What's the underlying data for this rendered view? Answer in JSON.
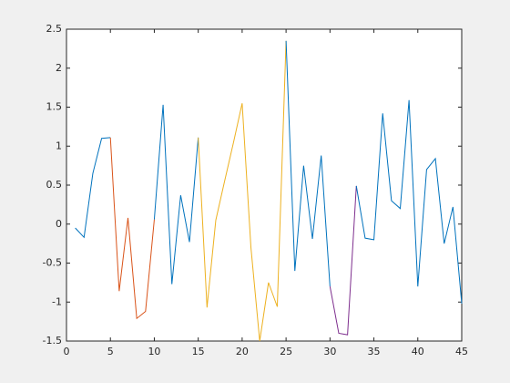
{
  "chart_data": {
    "type": "line",
    "series": [
      {
        "color": "#0072bd",
        "x": [
          1,
          2,
          3,
          4,
          5
        ],
        "values": [
          -0.05,
          -0.17,
          0.65,
          1.1,
          1.11
        ]
      },
      {
        "color": "#d95319",
        "x": [
          5,
          6,
          7,
          8,
          9,
          10
        ],
        "values": [
          1.11,
          -0.86,
          0.08,
          -1.21,
          -1.12,
          0.06
        ]
      },
      {
        "color": "#0072bd",
        "x": [
          10,
          11,
          12,
          13,
          14,
          15
        ],
        "values": [
          0.06,
          1.53,
          -0.77,
          0.37,
          -0.23,
          1.11
        ]
      },
      {
        "color": "#edb120",
        "x": [
          15,
          16,
          17,
          18,
          19,
          20,
          21,
          22,
          23,
          24,
          25
        ],
        "values": [
          1.11,
          -1.07,
          0.05,
          0.55,
          1.04,
          1.55,
          -0.3,
          -1.5,
          -0.75,
          -1.06,
          2.35
        ]
      },
      {
        "color": "#0072bd",
        "x": [
          25,
          26,
          27,
          28,
          29,
          30
        ],
        "values": [
          2.35,
          -0.6,
          0.75,
          -0.19,
          0.88,
          -0.8
        ]
      },
      {
        "color": "#7e2f8e",
        "x": [
          30,
          31,
          32,
          33
        ],
        "values": [
          -0.8,
          -1.4,
          -1.42,
          0.49
        ]
      },
      {
        "color": "#0072bd",
        "x": [
          33,
          34,
          35,
          36,
          37,
          38,
          39,
          40,
          41,
          42,
          43,
          44,
          45
        ],
        "values": [
          0.49,
          -0.18,
          -0.2,
          1.42,
          0.3,
          0.2,
          1.59,
          -0.8,
          0.7,
          0.84,
          -0.25,
          0.22,
          -1.02
        ]
      }
    ],
    "xlim": [
      0,
      45
    ],
    "xticks": [
      0,
      5,
      10,
      15,
      20,
      25,
      30,
      35,
      40,
      45
    ],
    "ylim": [
      -1.5,
      2.5
    ],
    "yticks": [
      -1.5,
      -1,
      -0.5,
      0,
      0.5,
      1,
      1.5,
      2,
      2.5
    ],
    "grid": false
  }
}
